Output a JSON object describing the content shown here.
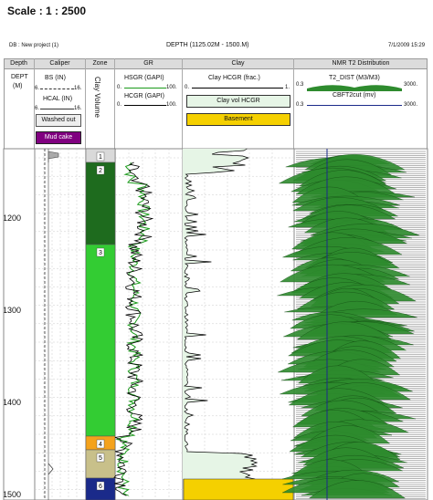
{
  "header": {
    "scale": "Scale : 1 : 2500",
    "db": "DB : New project (1)",
    "depth_range": "DEPTH (1125.02M - 1500.M)",
    "date": "7/1/2009 15:29"
  },
  "tracks": {
    "depth": {
      "title": "Depth",
      "label": "DEPT",
      "unit": "(M)"
    },
    "caliper": {
      "title": "Caliper",
      "bs_label": "BS (IN)",
      "bs_min": "6.",
      "bs_max": "16.",
      "hcal_label": "HCAL (IN)",
      "hcal_min": "6.",
      "hcal_max": "16.",
      "washed_out": "Washed out",
      "mud_cake": "Mud cake"
    },
    "zone": {
      "title": "Zone",
      "label": "Clay Volume"
    },
    "gr": {
      "title": "GR",
      "hsgr_label": "HSGR (GAPI)",
      "hsgr_min": "0.",
      "hsgr_max": "100.",
      "hcgr_label": "HCGR (GAPI)",
      "hcgr_min": "0.",
      "hcgr_max": "100."
    },
    "clay": {
      "title": "Clay",
      "curve_label": "Clay HCGR (frac.)",
      "min": "0.",
      "max": "1.",
      "fill_label": "Clay vol HCGR",
      "basement": "Basement"
    },
    "nmr": {
      "title": "NMR T2 Distribution",
      "t2_label": "T2_DIST (M3/M3)",
      "t2_min": "0.3",
      "t2_max": "3000.",
      "cut_label": "CBFT2cut (mv)",
      "cut_min": "0.3",
      "cut_max": "3000."
    }
  },
  "depth_ticks": [
    "1200",
    "1300",
    "1400",
    "1500"
  ],
  "zones": [
    {
      "id": "1",
      "color": "#d9d9d9"
    },
    {
      "id": "2",
      "color": "#1e6b1e"
    },
    {
      "id": "3",
      "color": "#33cc33"
    },
    {
      "id": "4",
      "color": "#f4a21c"
    },
    {
      "id": "5",
      "color": "#c8c08a"
    },
    {
      "id": "6",
      "color": "#1a2a8a"
    }
  ],
  "colors": {
    "hsgr": "#1a9a1a",
    "hcgr": "#000000",
    "nmr_fill": "#2e8b2e",
    "basement": "#f5d000"
  }
}
